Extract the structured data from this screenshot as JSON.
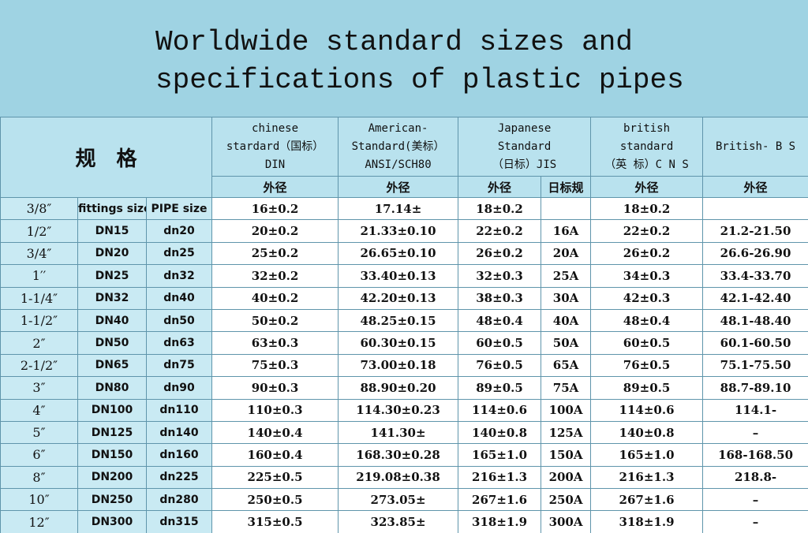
{
  "header": {
    "title": [
      "Worldwide standard sizes and",
      "specifications of plastic pipes"
    ]
  },
  "table": {
    "spec_label": "规　格",
    "columns": [
      [
        "chinese",
        "stardard（国标）",
        "DIN"
      ],
      [
        "American-",
        "Standard(美标）",
        "ANSI/SCH80"
      ],
      [
        "Japanese",
        "Standard",
        "（日标）JIS"
      ],
      [
        "british",
        "standard",
        "（英 标）C N S"
      ],
      [
        "British- B S"
      ]
    ],
    "subheaders": [
      "外径",
      "外径",
      "外径",
      "日标规",
      "外径",
      "外径"
    ],
    "rows": [
      [
        "3/8″",
        "fittings size",
        "PIPE size",
        "16±0.2",
        "17.14±",
        "18±0.2",
        null,
        "18±0.2",
        null
      ],
      [
        "1/2″",
        "DN15",
        "dn20",
        "20±0.2",
        "21.33±0.10",
        "22±0.2",
        "16A",
        "22±0.2",
        "21.2-21.50"
      ],
      [
        "3/4″",
        "DN20",
        "dn25",
        "25±0.2",
        "26.65±0.10",
        "26±0.2",
        "20A",
        "26±0.2",
        "26.6-26.90"
      ],
      [
        "1′′",
        "DN25",
        "dn32",
        "32±0.2",
        "33.40±0.13",
        "32±0.3",
        "25A",
        "34±0.3",
        "33.4-33.70"
      ],
      [
        "1-1/4″",
        "DN32",
        "dn40",
        "40±0.2",
        "42.20±0.13",
        "38±0.3",
        "30A",
        "42±0.3",
        "42.1-42.40"
      ],
      [
        "1-1/2″",
        "DN40",
        "dn50",
        "50±0.2",
        "48.25±0.15",
        "48±0.4",
        "40A",
        "48±0.4",
        "48.1-48.40"
      ],
      [
        "2″",
        "DN50",
        "dn63",
        "63±0.3",
        "60.30±0.15",
        "60±0.5",
        "50A",
        "60±0.5",
        "60.1-60.50"
      ],
      [
        "2-1/2″",
        "DN65",
        "dn75",
        "75±0.3",
        "73.00±0.18",
        "76±0.5",
        "65A",
        "76±0.5",
        "75.1-75.50"
      ],
      [
        "3″",
        "DN80",
        "dn90",
        "90±0.3",
        "88.90±0.20",
        "89±0.5",
        "75A",
        "89±0.5",
        "88.7-89.10"
      ],
      [
        "4″",
        "DN100",
        "dn110",
        "110±0.3",
        "114.30±0.23",
        "114±0.6",
        "100A",
        "114±0.6",
        "114.1-"
      ],
      [
        "5″",
        "DN125",
        "dn140",
        "140±0.4",
        "141.30±",
        "140±0.8",
        "125A",
        "140±0.8",
        "–"
      ],
      [
        "6″",
        "DN150",
        "dn160",
        "160±0.4",
        "168.30±0.28",
        "165±1.0",
        "150A",
        "165±1.0",
        "168-168.50"
      ],
      [
        "8″",
        "DN200",
        "dn225",
        "225±0.5",
        "219.08±0.38",
        "216±1.3",
        "200A",
        "216±1.3",
        "218.8-"
      ],
      [
        "10″",
        "DN250",
        "dn280",
        "250±0.5",
        "273.05±",
        "267±1.6",
        "250A",
        "267±1.6",
        "–"
      ],
      [
        "12″",
        "DN300",
        "dn315",
        "315±0.5",
        "323.85±",
        "318±1.9",
        "300A",
        "318±1.9",
        "–"
      ]
    ]
  }
}
